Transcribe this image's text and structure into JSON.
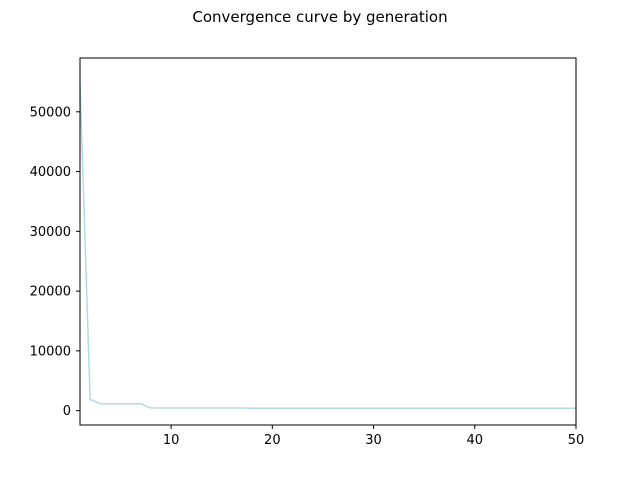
{
  "chart_data": {
    "type": "line",
    "title": "Convergence curve by generation",
    "xlabel": "",
    "ylabel": "",
    "xlim": [
      1,
      50
    ],
    "ylim": [
      -2400,
      59000
    ],
    "xticks": [
      10,
      20,
      30,
      40,
      50
    ],
    "yticks": [
      0,
      10000,
      20000,
      30000,
      40000,
      50000
    ],
    "xtick_labels": [
      "10",
      "20",
      "30",
      "40",
      "50"
    ],
    "ytick_labels": [
      "0",
      "10000",
      "20000",
      "30000",
      "40000",
      "50000"
    ],
    "grid": false,
    "legend": "none",
    "series": [
      {
        "color": "#add8e6",
        "x": [
          1,
          2,
          3,
          4,
          5,
          6,
          7,
          8,
          9,
          10,
          11,
          12,
          13,
          14,
          15,
          16,
          17,
          18,
          19,
          20,
          21,
          22,
          23,
          24,
          25,
          26,
          27,
          28,
          29,
          30,
          31,
          32,
          33,
          34,
          35,
          36,
          37,
          38,
          39,
          40,
          41,
          42,
          43,
          44,
          45,
          46,
          47,
          48,
          49,
          50
        ],
        "values": [
          55000,
          1900,
          1150,
          1150,
          1150,
          1150,
          1150,
          450,
          450,
          450,
          450,
          450,
          450,
          450,
          450,
          450,
          450,
          400,
          400,
          400,
          400,
          400,
          400,
          400,
          400,
          400,
          400,
          400,
          400,
          400,
          400,
          400,
          400,
          400,
          400,
          400,
          400,
          400,
          400,
          400,
          400,
          400,
          400,
          400,
          400,
          400,
          400,
          400,
          400,
          400
        ]
      }
    ]
  }
}
